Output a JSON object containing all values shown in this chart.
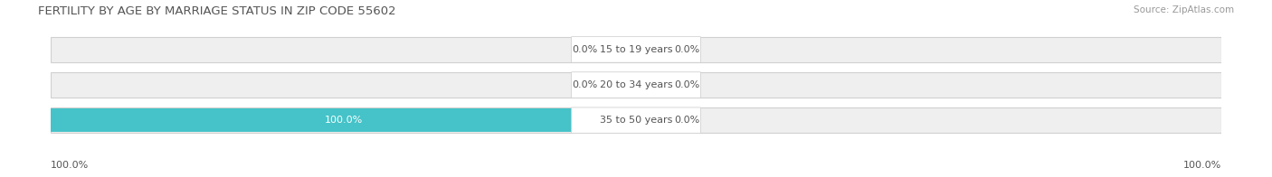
{
  "title": "FERTILITY BY AGE BY MARRIAGE STATUS IN ZIP CODE 55602",
  "source": "Source: ZipAtlas.com",
  "categories": [
    "15 to 19 years",
    "20 to 34 years",
    "35 to 50 years"
  ],
  "married_pct": [
    0.0,
    0.0,
    100.0
  ],
  "unmarried_pct": [
    0.0,
    0.0,
    0.0
  ],
  "married_color": "#45c3c8",
  "unmarried_color": "#f4a7b9",
  "bar_bg_color": "#efefef",
  "bar_border_color": "#d0d0d0",
  "center_box_color": "#ffffff",
  "title_color": "#555555",
  "source_color": "#999999",
  "label_color": "#555555",
  "value_color_dark": "#555555",
  "value_color_white": "#ffffff",
  "title_fontsize": 9.5,
  "source_fontsize": 7.5,
  "label_fontsize": 8,
  "value_fontsize": 8,
  "axis_label_fontsize": 8,
  "legend_fontsize": 8.5,
  "x_min": -100,
  "x_max": 100,
  "left_axis_label": "100.0%",
  "right_axis_label": "100.0%",
  "background_color": "#ffffff",
  "fig_width": 14.06,
  "fig_height": 1.96
}
